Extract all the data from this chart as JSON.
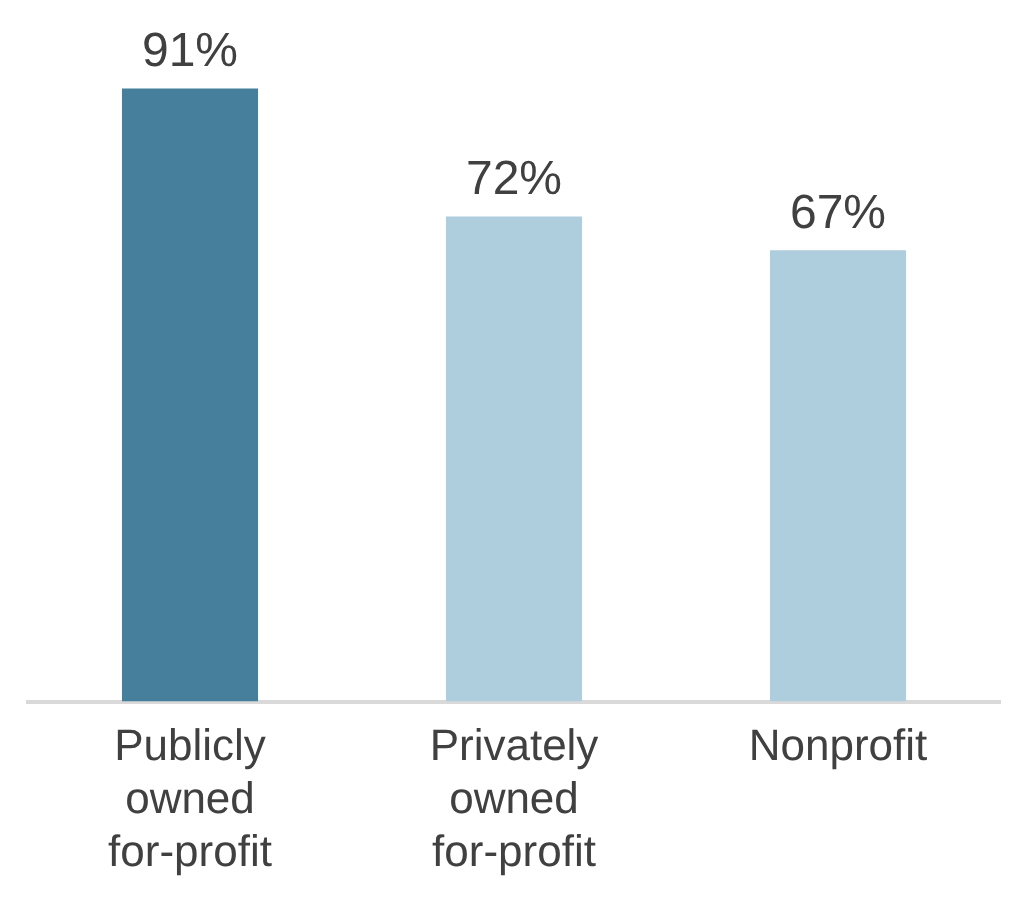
{
  "chart_data": {
    "type": "bar",
    "categories": [
      "Publicly owned for-profit",
      "Privately owned for-profit",
      "Nonprofit"
    ],
    "values": [
      91,
      72,
      67
    ],
    "colors": [
      "#457f9c",
      "#aecddd",
      "#aecddd"
    ],
    "value_labels": [
      "91%",
      "72%",
      "67%"
    ],
    "grid": false,
    "legend": false
  }
}
